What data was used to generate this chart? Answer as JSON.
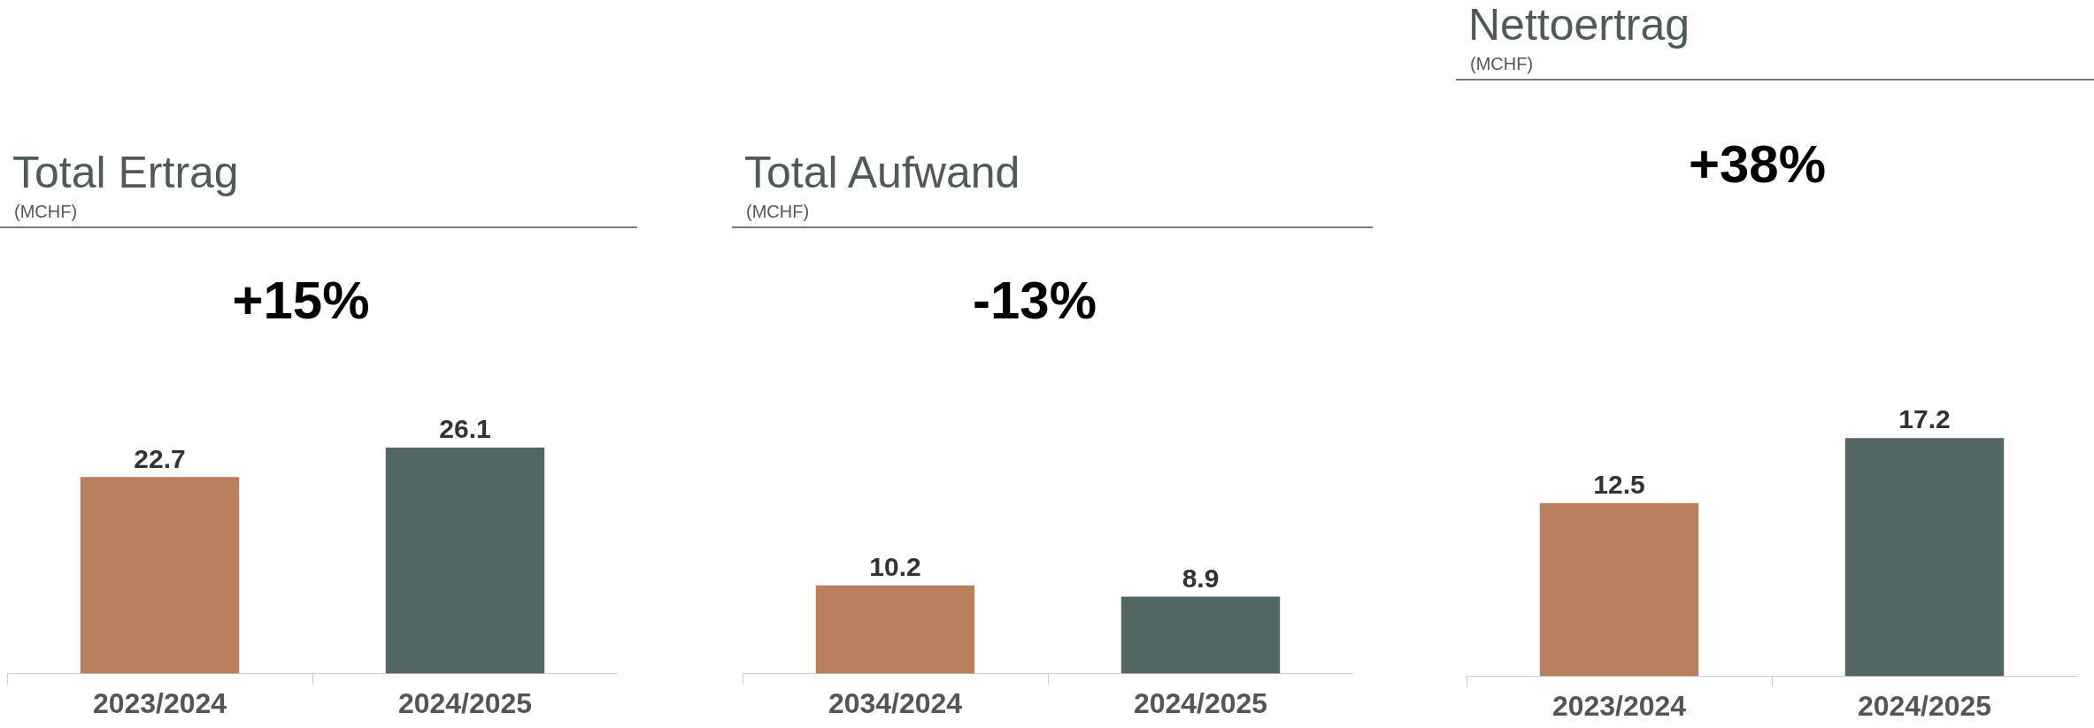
{
  "chart_data": [
    {
      "type": "bar",
      "title": "Total Ertrag",
      "subtitle": "(MCHF)",
      "annotations": [
        "+15%"
      ],
      "categories": [
        "2023/2024",
        "2024/2025"
      ],
      "values": [
        22.7,
        26.1
      ],
      "colors": [
        "#b77f5c",
        "#526663"
      ],
      "data_labels": true
    },
    {
      "type": "bar",
      "title": "Total Aufwand",
      "subtitle": "(MCHF)",
      "annotations": [
        "-13%"
      ],
      "categories": [
        "2034/2024",
        "2024/2025"
      ],
      "values": [
        10.2,
        8.9
      ],
      "colors": [
        "#b77f5c",
        "#526663"
      ],
      "data_labels": true
    },
    {
      "type": "bar",
      "title": "Nettoertrag",
      "subtitle": "(MCHF)",
      "annotations": [
        "+38%"
      ],
      "categories": [
        "2023/2024",
        "2024/2025"
      ],
      "values": [
        12.5,
        17.2
      ],
      "colors": [
        "#b77f5c",
        "#526663"
      ],
      "data_labels": true
    }
  ]
}
